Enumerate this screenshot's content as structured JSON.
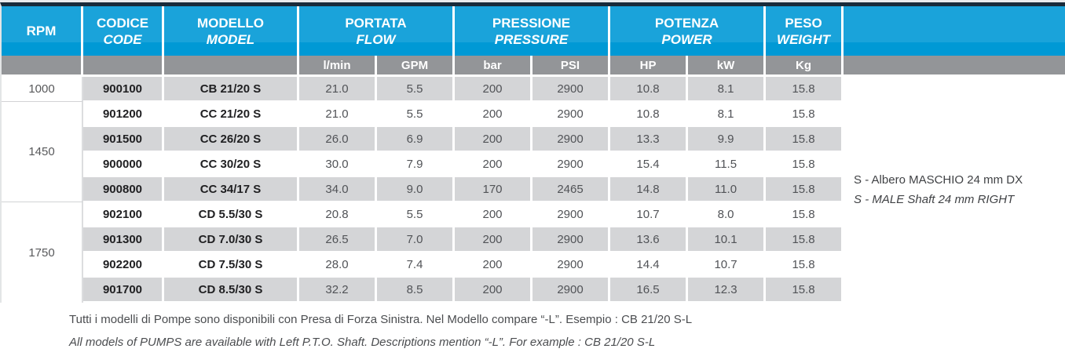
{
  "colors": {
    "navy_top_bar": "#182b3a",
    "header_cyan": "#1aa3da",
    "header_cyan_band": "#0099d5",
    "subheader_gray": "#939598",
    "row_shaded_gray": "#d4d5d7",
    "data_text": "#515357"
  },
  "header": {
    "rpm": "RPM",
    "groups": [
      {
        "it": "CODICE",
        "en": "CODE"
      },
      {
        "it": "MODELLO",
        "en": "MODEL"
      },
      {
        "it": "PORTATA",
        "en": "FLOW"
      },
      {
        "it": "PRESSIONE",
        "en": "PRESSURE"
      },
      {
        "it": "POTENZA",
        "en": "POWER"
      },
      {
        "it": "PESO",
        "en": "WEIGHT"
      }
    ],
    "units": {
      "flow_lmin": "l/min",
      "flow_gpm": "GPM",
      "pressure_bar": "bar",
      "pressure_psi": "PSI",
      "power_hp": "HP",
      "power_kw": "kW",
      "weight_kg": "Kg"
    }
  },
  "table": {
    "rpm_groups": [
      {
        "rpm": "1000",
        "span": 1
      },
      {
        "rpm": "1450",
        "span": 4
      },
      {
        "rpm": "1750",
        "span": 4
      }
    ],
    "rows": [
      {
        "code": "900100",
        "model": "CB 21/20 S",
        "flow_lmin": "21.0",
        "flow_gpm": "5.5",
        "pressure_bar": "200",
        "pressure_psi": "2900",
        "power_hp": "10.8",
        "power_kw": "8.1",
        "weight_kg": "15.8",
        "shaded": true
      },
      {
        "code": "901200",
        "model": "CC 21/20 S",
        "flow_lmin": "21.0",
        "flow_gpm": "5.5",
        "pressure_bar": "200",
        "pressure_psi": "2900",
        "power_hp": "10.8",
        "power_kw": "8.1",
        "weight_kg": "15.8",
        "shaded": false
      },
      {
        "code": "901500",
        "model": "CC 26/20 S",
        "flow_lmin": "26.0",
        "flow_gpm": "6.9",
        "pressure_bar": "200",
        "pressure_psi": "2900",
        "power_hp": "13.3",
        "power_kw": "9.9",
        "weight_kg": "15.8",
        "shaded": true
      },
      {
        "code": "900000",
        "model": "CC 30/20 S",
        "flow_lmin": "30.0",
        "flow_gpm": "7.9",
        "pressure_bar": "200",
        "pressure_psi": "2900",
        "power_hp": "15.4",
        "power_kw": "11.5",
        "weight_kg": "15.8",
        "shaded": false
      },
      {
        "code": "900800",
        "model": "CC 34/17 S",
        "flow_lmin": "34.0",
        "flow_gpm": "9.0",
        "pressure_bar": "170",
        "pressure_psi": "2465",
        "power_hp": "14.8",
        "power_kw": "11.0",
        "weight_kg": "15.8",
        "shaded": true
      },
      {
        "code": "902100",
        "model": "CD 5.5/30 S",
        "flow_lmin": "20.8",
        "flow_gpm": "5.5",
        "pressure_bar": "200",
        "pressure_psi": "2900",
        "power_hp": "10.7",
        "power_kw": "8.0",
        "weight_kg": "15.8",
        "shaded": false
      },
      {
        "code": "901300",
        "model": "CD 7.0/30 S",
        "flow_lmin": "26.5",
        "flow_gpm": "7.0",
        "pressure_bar": "200",
        "pressure_psi": "2900",
        "power_hp": "13.6",
        "power_kw": "10.1",
        "weight_kg": "15.8",
        "shaded": true
      },
      {
        "code": "902200",
        "model": "CD 7.5/30 S",
        "flow_lmin": "28.0",
        "flow_gpm": "7.4",
        "pressure_bar": "200",
        "pressure_psi": "2900",
        "power_hp": "14.4",
        "power_kw": "10.7",
        "weight_kg": "15.8",
        "shaded": false
      },
      {
        "code": "901700",
        "model": "CD 8.5/30 S",
        "flow_lmin": "32.2",
        "flow_gpm": "8.5",
        "pressure_bar": "200",
        "pressure_psi": "2900",
        "power_hp": "16.5",
        "power_kw": "12.3",
        "weight_kg": "15.8",
        "shaded": true
      }
    ]
  },
  "side_note": {
    "line_it": "S - Albero MASCHIO 24 mm DX",
    "line_en": "S - MALE Shaft 24 mm RIGHT"
  },
  "footnotes": {
    "it": "Tutti i modelli di Pompe sono disponibili con Presa di Forza Sinistra. Nel Modello compare “-L”. Esempio : CB 21/20 S-L",
    "en": "All models of PUMPS are available with Left P.T.O. Shaft. Descriptions mention “-L”. For example : CB 21/20 S-L"
  }
}
